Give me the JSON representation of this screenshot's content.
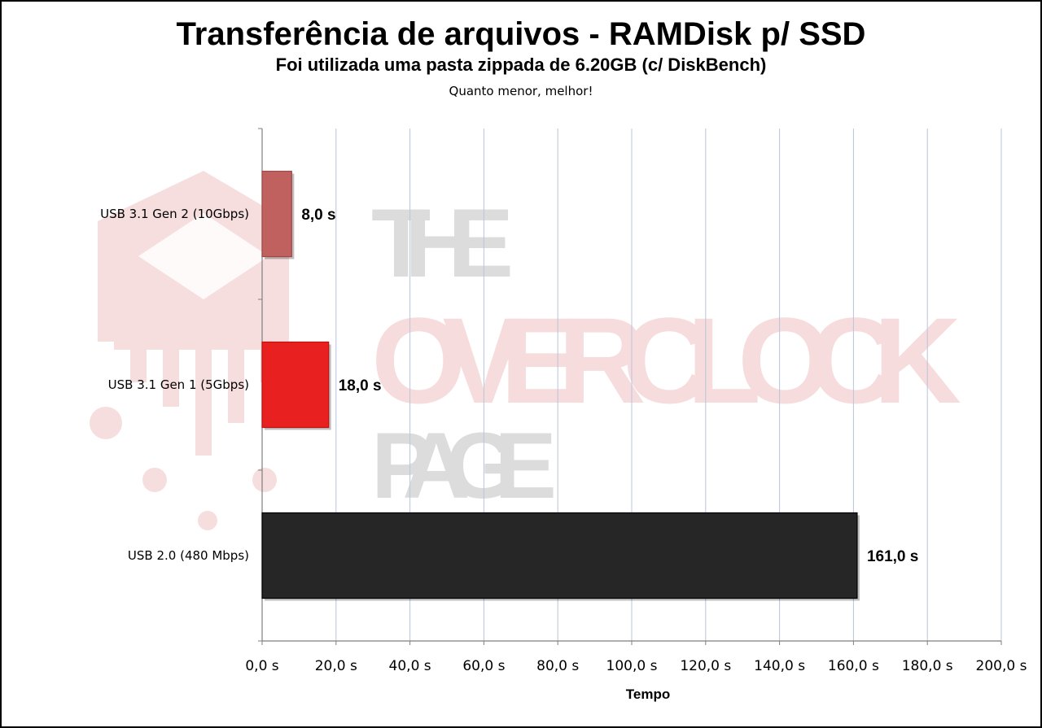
{
  "chart_data": {
    "type": "bar",
    "orientation": "horizontal",
    "title": "Transferência de arquivos - RAMDisk p/ SSD",
    "subtitle": "Foi utilizada uma pasta zippada de 6.20GB (c/ DiskBench)",
    "note": "Quanto menor, melhor!",
    "xlabel": "Tempo",
    "ylabel": "",
    "xlim": [
      0,
      200
    ],
    "x_ticks": [
      0,
      20,
      40,
      60,
      80,
      100,
      120,
      140,
      160,
      180,
      200
    ],
    "x_tick_labels": [
      "0,0 s",
      "20,0 s",
      "40,0 s",
      "60,0 s",
      "80,0 s",
      "100,0 s",
      "120,0 s",
      "140,0 s",
      "160,0 s",
      "180,0 s",
      "200,0 s"
    ],
    "grid": "vertical",
    "categories": [
      "USB 3.1 Gen 2 (10Gbps)",
      "USB 3.1 Gen 1 (5Gbps)",
      "USB 2.0 (480 Mbps)"
    ],
    "values": [
      8.0,
      18.0,
      161.0
    ],
    "value_labels": [
      "8,0 s",
      "18,0 s",
      "161,0 s"
    ],
    "bar_colors": [
      "#c0605f",
      "#e8201f",
      "#262626"
    ],
    "bar_borders": [
      "#9e4a49",
      "#c01010",
      "#000000"
    ],
    "colors": {
      "grid": "#b8c4dc",
      "axis": "#7f7f7f"
    }
  },
  "watermark": {
    "lines": [
      "THE",
      "OVERCLOCK",
      "PAGE"
    ],
    "colors": {
      "the": "#dcdcdc",
      "overclock": "#f6dcdc",
      "page": "#dcdcdc",
      "logo": "#f7dede"
    }
  }
}
